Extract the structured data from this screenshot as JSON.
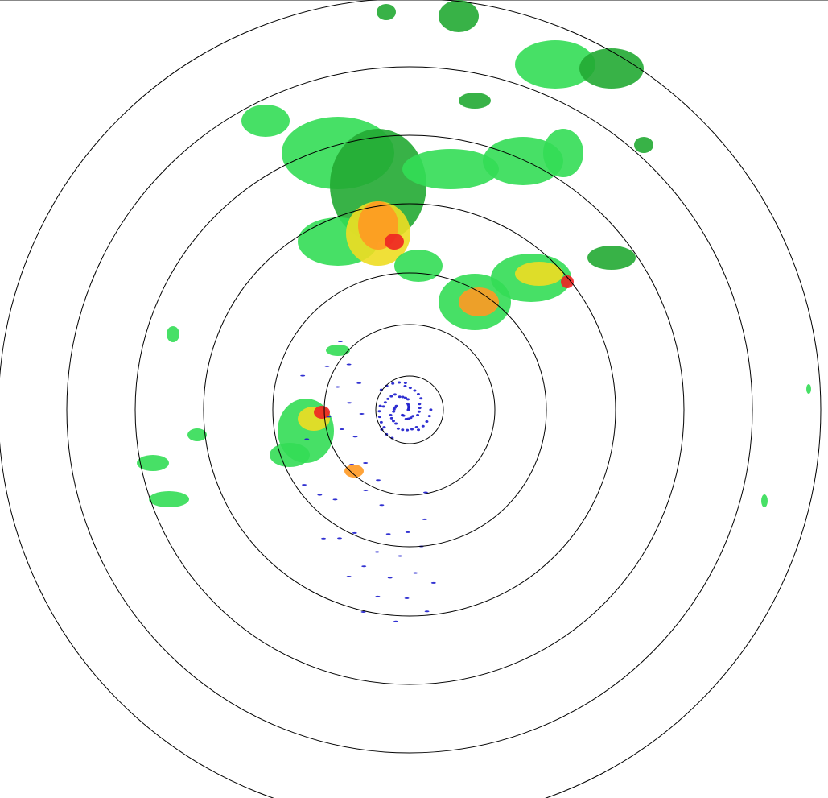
{
  "radar": {
    "range_ring_count": 7,
    "ring_color": "#000000",
    "background": "#ffffff",
    "reflectivity_colors": {
      "weak_blue": "#1a1acc",
      "light_green": "#33dd55",
      "green": "#22aa33",
      "yellow": "#eedd22",
      "orange": "#ff9922",
      "red": "#ee2222"
    }
  }
}
